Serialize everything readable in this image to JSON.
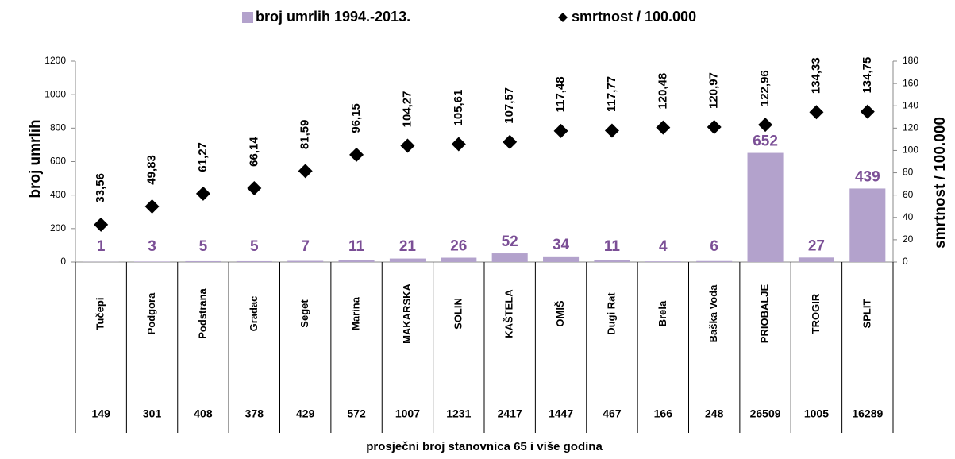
{
  "chart_data": {
    "type": "bar",
    "categories": [
      "Tučepi",
      "Podgora",
      "Podstrana",
      "Gradac",
      "Seget",
      "Marina",
      "MAKARSKA",
      "SOLIN",
      "KAŠTELA",
      "OMIŠ",
      "Dugi Rat",
      "Brela",
      "Baška Voda",
      "PRIOBALJE",
      "TROGIR",
      "SPLIT"
    ],
    "series": [
      {
        "name": "broj umrlih 1994.-2013.",
        "type": "bar",
        "color": "#b3a2cc",
        "label_color": "#7b4f96",
        "values": [
          1,
          3,
          5,
          5,
          7,
          11,
          21,
          26,
          52,
          34,
          11,
          4,
          6,
          652,
          27,
          439
        ]
      },
      {
        "name": "smrtnost / 100.000",
        "type": "scatter",
        "axis": "y2",
        "color": "#000000",
        "values": [
          33.56,
          49.83,
          61.27,
          66.14,
          81.59,
          96.15,
          104.27,
          105.61,
          107.57,
          117.48,
          117.77,
          120.48,
          120.97,
          122.96,
          134.33,
          134.75
        ],
        "value_labels": [
          "33,56",
          "49,83",
          "61,27",
          "66,14",
          "81,59",
          "96,15",
          "104,27",
          "105,61",
          "107,57",
          "117,48",
          "117,77",
          "120,48",
          "120,97",
          "122,96",
          "134,33",
          "134,75"
        ]
      }
    ],
    "population": [
      149,
      301,
      408,
      378,
      429,
      572,
      1007,
      1231,
      2417,
      1447,
      467,
      166,
      248,
      26509,
      1005,
      16289
    ],
    "x_label": "prosječni broj stanovnica 65 i više godina",
    "y_label": "broj umrlih",
    "y2_label": "smrtnost / 100.000",
    "ylim": [
      0,
      1200
    ],
    "yticks": [
      0,
      200,
      400,
      600,
      800,
      1000,
      1200
    ],
    "y2lim": [
      0,
      180
    ],
    "y2ticks": [
      0,
      20,
      40,
      60,
      80,
      100,
      120,
      140,
      160,
      180
    ]
  }
}
